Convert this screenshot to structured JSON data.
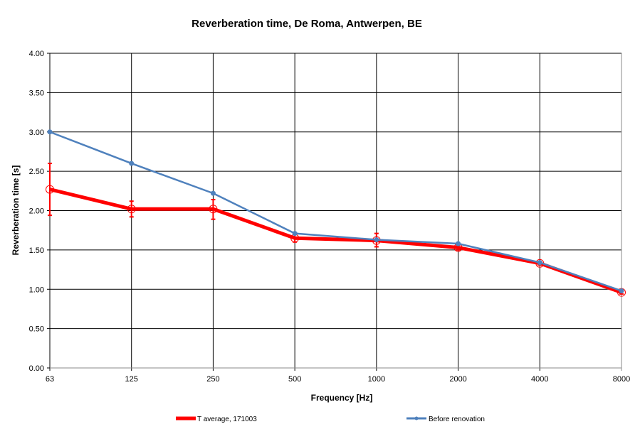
{
  "chart_data": {
    "type": "line",
    "title": "Reverberation time, De Roma, Antwerpen, BE",
    "xlabel": "Frequency [Hz]",
    "ylabel": "Reverberation time [s]",
    "categories": [
      "63",
      "125",
      "250",
      "500",
      "1000",
      "2000",
      "4000",
      "8000"
    ],
    "ylim": [
      0,
      4
    ],
    "yticks": [
      "0.00",
      "0.50",
      "1.00",
      "1.50",
      "2.00",
      "2.50",
      "3.00",
      "3.50",
      "4.00"
    ],
    "grid": true,
    "legend_position": "bottom",
    "series": [
      {
        "name": "T average, 171003",
        "color": "#ff0000",
        "values": [
          2.27,
          2.02,
          2.02,
          1.65,
          1.62,
          1.53,
          1.33,
          0.96
        ],
        "error_low": [
          1.94,
          1.92,
          1.89,
          1.6,
          1.54,
          1.5,
          1.31,
          0.94
        ],
        "error_high": [
          2.6,
          2.12,
          2.14,
          1.7,
          1.71,
          1.56,
          1.35,
          0.98
        ]
      },
      {
        "name": "Before renovation",
        "color": "#4f81bd",
        "values": [
          3.0,
          2.6,
          2.22,
          1.71,
          1.63,
          1.58,
          1.34,
          0.98
        ]
      }
    ]
  }
}
